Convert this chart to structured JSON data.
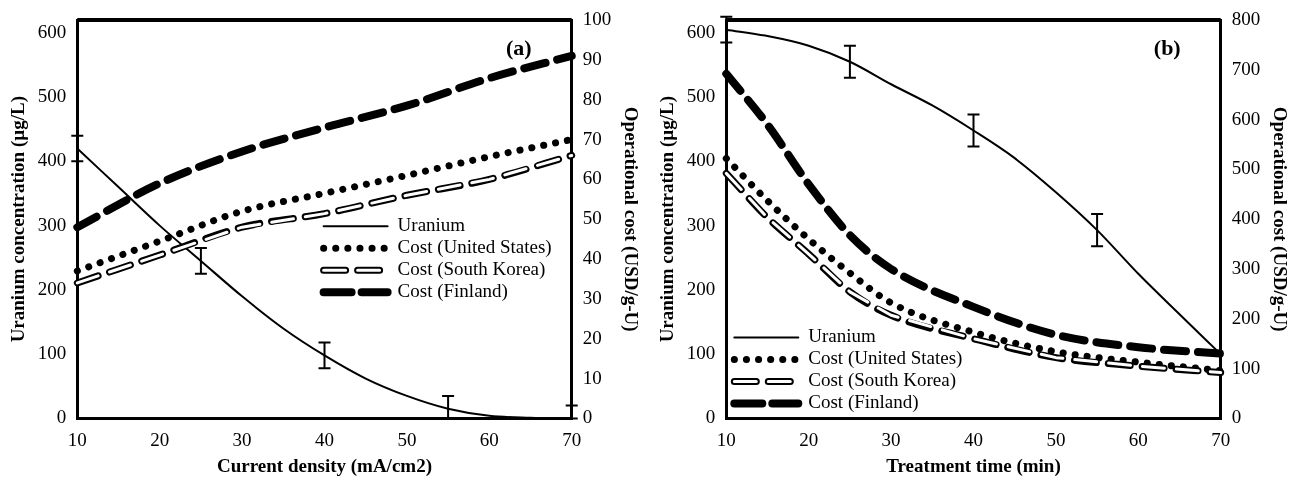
{
  "chart_data": [
    {
      "type": "line",
      "xlabel": "Current density (mA/cm2)",
      "ylabel": "Uranium concentration (µg/L)",
      "y2label": "Operational cost (USD/g-U)",
      "annotations": [
        "(a)"
      ],
      "xlim": [
        10,
        70
      ],
      "xticks": [
        10,
        20,
        30,
        40,
        50,
        60,
        70
      ],
      "ylim": [
        0,
        620
      ],
      "yticks": [
        0,
        100,
        200,
        300,
        400,
        500,
        600
      ],
      "y2lim": [
        0,
        100
      ],
      "y2ticks": [
        0,
        10,
        20,
        30,
        40,
        50,
        60,
        70,
        80,
        90,
        100
      ],
      "grid": false,
      "legend": "right",
      "marker": "none",
      "series": [
        {
          "name": "Uranium",
          "color": "#000000",
          "line_style": "solid",
          "x": [
            10,
            15,
            20,
            25,
            30,
            35,
            40,
            45,
            50,
            55,
            60,
            65,
            70
          ],
          "values": [
            420,
            360,
            300,
            245,
            190,
            140,
            98,
            62,
            35,
            15,
            4,
            1,
            0
          ],
          "errors": [
            20,
            null,
            null,
            20,
            null,
            null,
            20,
            null,
            null,
            [
              0,
              35
            ],
            null,
            null,
            [
              0,
              20
            ]
          ]
        },
        {
          "name": "Cost (United States)",
          "color": "#000000",
          "line_style": "dotted",
          "axis": "y2",
          "x": [
            10,
            20,
            30,
            40,
            50,
            60,
            70
          ],
          "values": [
            37,
            44.5,
            52,
            56.5,
            61,
            65.7,
            70
          ]
        },
        {
          "name": "Cost (South Korea)",
          "color": "#000000",
          "line_style": "dashed",
          "axis": "y2",
          "x": [
            10,
            20,
            30,
            40,
            50,
            60,
            70
          ],
          "values": [
            34,
            41,
            48,
            51.4,
            56,
            60,
            66
          ]
        },
        {
          "name": "Cost (Finland)",
          "color": "#000000",
          "line_style": "dashed",
          "axis": "y2",
          "x": [
            10,
            20,
            30,
            40,
            50,
            60,
            70
          ],
          "values": [
            48,
            59,
            67,
            73,
            78.5,
            85.4,
            91
          ]
        }
      ]
    },
    {
      "type": "line",
      "xlabel": "Treatment time (min)",
      "ylabel": "Uranium concentration (µg/L)",
      "y2label": "Operational cost (USD/g-U)",
      "annotations": [
        "(b)"
      ],
      "xlim": [
        10,
        70
      ],
      "xticks": [
        10,
        20,
        30,
        40,
        50,
        60,
        70
      ],
      "ylim": [
        0,
        620
      ],
      "yticks": [
        0,
        100,
        200,
        300,
        400,
        500,
        600
      ],
      "y2lim": [
        0,
        800
      ],
      "y2ticks": [
        0,
        100,
        200,
        300,
        400,
        500,
        600,
        700,
        800
      ],
      "grid": false,
      "legend": "bottom left",
      "marker": "none",
      "series": [
        {
          "name": "Uranium",
          "color": "#000000",
          "line_style": "solid",
          "x": [
            10,
            15,
            20,
            25,
            30,
            35,
            40,
            45,
            50,
            55,
            60,
            65,
            70
          ],
          "values": [
            605,
            595,
            580,
            555,
            520,
            487,
            448,
            405,
            352,
            293,
            225,
            162,
            100
          ],
          "errors": [
            20,
            null,
            null,
            25,
            null,
            null,
            25,
            null,
            null,
            25,
            null,
            null,
            null
          ]
        },
        {
          "name": "Cost (United States)",
          "color": "#000000",
          "line_style": "dotted",
          "axis": "y2",
          "x": [
            10,
            15,
            20,
            25,
            30,
            40,
            50,
            60,
            70
          ],
          "values": [
            522,
            437,
            360,
            292,
            232,
            173,
            134,
            113,
            96
          ]
        },
        {
          "name": "Cost (South Korea)",
          "color": "#000000",
          "line_style": "dashed",
          "axis": "y2",
          "x": [
            10,
            15,
            20,
            25,
            30,
            40,
            50,
            60,
            70
          ],
          "values": [
            492,
            403,
            330,
            254,
            207,
            160,
            122,
            105,
            92
          ]
        },
        {
          "name": "Cost (Finland)",
          "color": "#000000",
          "line_style": "dashed",
          "axis": "y2",
          "x": [
            10,
            15,
            20,
            25,
            30,
            40,
            50,
            60,
            70
          ],
          "values": [
            692,
            590,
            470,
            368,
            300,
            224,
            168,
            143,
            130
          ]
        }
      ]
    }
  ]
}
